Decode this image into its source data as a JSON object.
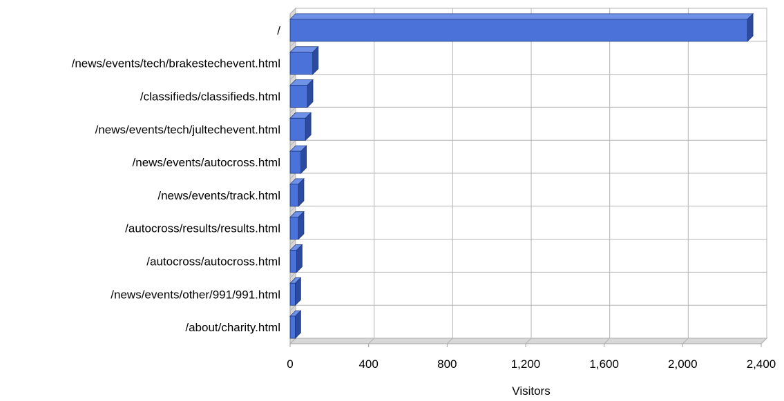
{
  "chart_data": {
    "type": "bar",
    "orientation": "horizontal",
    "style": "3d",
    "categories": [
      "/",
      "/news/events/tech/brakestechevent.html",
      "/classifieds/classifieds.html",
      "/news/events/tech/jultechevent.html",
      "/news/events/autocross.html",
      "/news/events/track.html",
      "/autocross/results/results.html",
      "/autocross/autocross.html",
      "/news/events/other/991/991.html",
      "/about/charity.html"
    ],
    "values": [
      2330,
      115,
      88,
      78,
      55,
      42,
      42,
      33,
      26,
      26
    ],
    "xlabel": "Visitors",
    "ylabel": "",
    "title": "",
    "xlim": [
      0,
      2400
    ],
    "xticks": [
      0,
      400,
      800,
      1200,
      1600,
      2000,
      2400
    ],
    "xtick_labels": [
      "0",
      "400",
      "800",
      "1,200",
      "1,600",
      "2,000",
      "2,400"
    ],
    "grid": true,
    "legend": "none",
    "colors": {
      "bar_front": "#4a72d9",
      "bar_top": "#6f92e8",
      "bar_side": "#2b4aa0",
      "bar_edge": "#1f3a80",
      "grid": "#b4b4b4",
      "axis": "#a0a0a0",
      "wall": "#d8d8d8"
    }
  }
}
